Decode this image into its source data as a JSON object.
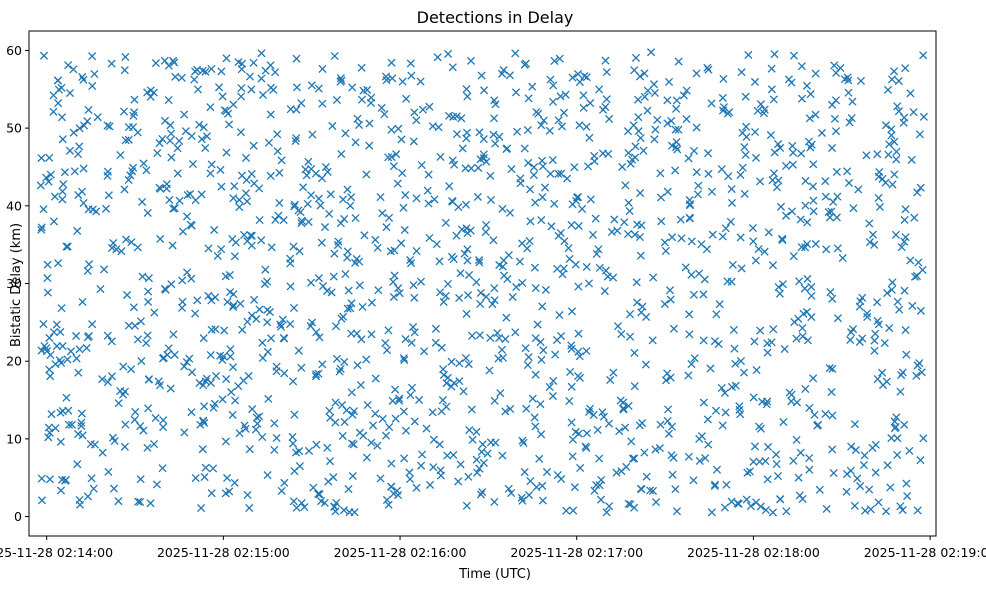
{
  "chart_data": {
    "type": "scatter",
    "title": "Detections in Delay",
    "xlabel": "Time (UTC)",
    "ylabel": "Bistatic Delay (km)",
    "x_ticks": [
      "2025-11-28 02:14:00",
      "2025-11-28 02:15:00",
      "2025-11-28 02:16:00",
      "2025-11-28 02:17:00",
      "2025-11-28 02:18:00",
      "2025-11-28 02:19:00"
    ],
    "y_ticks": [
      "0",
      "10",
      "20",
      "30",
      "40",
      "50",
      "60"
    ],
    "xlim": [
      "2025-11-28 02:13:54",
      "2025-11-28 02:19:02"
    ],
    "ylim": [
      -2.5,
      62.5
    ],
    "marker": "x",
    "color": "#1f77b4",
    "grid": false,
    "legend": "none",
    "x_range": [
      "2025-11-28 02:13:58",
      "2025-11-28 02:18:58"
    ],
    "y_range": [
      0.5,
      60
    ],
    "point_count": 1600
  }
}
